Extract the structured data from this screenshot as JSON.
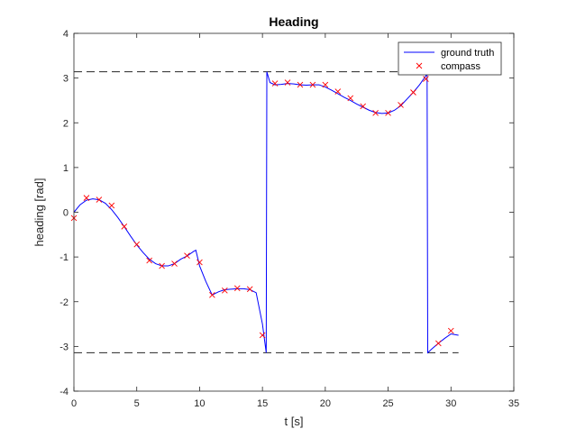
{
  "chart_data": {
    "type": "line",
    "title": "Heading",
    "xlabel": "t [s]",
    "ylabel": "heading [rad]",
    "xlim": [
      0,
      35
    ],
    "ylim": [
      -4,
      4
    ],
    "xticks": [
      0,
      5,
      10,
      15,
      20,
      25,
      30,
      35
    ],
    "yticks": [
      -4,
      -3,
      -2,
      -1,
      0,
      1,
      2,
      3,
      4
    ],
    "grid": false,
    "legend": {
      "location": "top-right",
      "entries": [
        "ground truth",
        "compass"
      ]
    },
    "reference_lines": [
      {
        "y": 3.1416,
        "x_range": [
          0,
          30.6
        ],
        "style": "dashed",
        "color": "#262626"
      },
      {
        "y": -3.1416,
        "x_range": [
          0,
          30.6
        ],
        "style": "dashed",
        "color": "#262626"
      }
    ],
    "series": [
      {
        "name": "ground truth",
        "kind": "line",
        "color": "#0000ff",
        "x": [
          0,
          0.5,
          1,
          1.5,
          2,
          2.5,
          3,
          3.5,
          4,
          4.5,
          5,
          5.5,
          6,
          6.5,
          7,
          7.5,
          8,
          8.5,
          9,
          9.5,
          9.7,
          10,
          10.5,
          11,
          11.5,
          12,
          12.5,
          13,
          13.5,
          14,
          14.5,
          15,
          15.3,
          15.35,
          15.6,
          16,
          16.5,
          17,
          17.5,
          18,
          18.5,
          19,
          19.5,
          20,
          20.5,
          21,
          21.5,
          22,
          22.5,
          23,
          23.5,
          24,
          24.5,
          25,
          25.5,
          26,
          26.5,
          27,
          27.5,
          28,
          28.1,
          28.15,
          28.5,
          29,
          29.5,
          30,
          30.6
        ],
        "y": [
          0.0,
          0.17,
          0.27,
          0.3,
          0.28,
          0.2,
          0.06,
          -0.12,
          -0.32,
          -0.53,
          -0.73,
          -0.9,
          -1.05,
          -1.15,
          -1.2,
          -1.2,
          -1.15,
          -1.05,
          -0.98,
          -0.88,
          -0.85,
          -1.2,
          -1.55,
          -1.85,
          -1.78,
          -1.73,
          -1.72,
          -1.71,
          -1.71,
          -1.73,
          -1.8,
          -2.5,
          -3.14,
          3.14,
          2.9,
          2.85,
          2.86,
          2.88,
          2.87,
          2.85,
          2.84,
          2.85,
          2.85,
          2.8,
          2.73,
          2.65,
          2.57,
          2.5,
          2.42,
          2.35,
          2.28,
          2.23,
          2.21,
          2.22,
          2.28,
          2.38,
          2.53,
          2.68,
          2.85,
          3.05,
          3.14,
          -3.14,
          -3.05,
          -2.93,
          -2.82,
          -2.72,
          -2.75
        ]
      },
      {
        "name": "compass",
        "kind": "scatter",
        "marker": "x",
        "color": "#ff0000",
        "x": [
          0,
          1,
          2,
          3,
          4,
          5,
          6,
          7,
          8,
          9,
          10,
          11,
          12,
          13,
          14,
          15,
          16,
          17,
          18,
          19,
          20,
          21,
          22,
          23,
          24,
          25,
          26,
          27,
          28,
          29,
          30
        ],
        "y": [
          -0.13,
          0.32,
          0.28,
          0.15,
          -0.32,
          -0.72,
          -1.08,
          -1.2,
          -1.15,
          -0.97,
          -1.12,
          -1.85,
          -1.75,
          -1.7,
          -1.72,
          -2.75,
          2.88,
          2.9,
          2.85,
          2.85,
          2.85,
          2.7,
          2.55,
          2.37,
          2.22,
          2.22,
          2.4,
          2.68,
          2.98,
          -2.93,
          -2.65
        ]
      }
    ]
  }
}
